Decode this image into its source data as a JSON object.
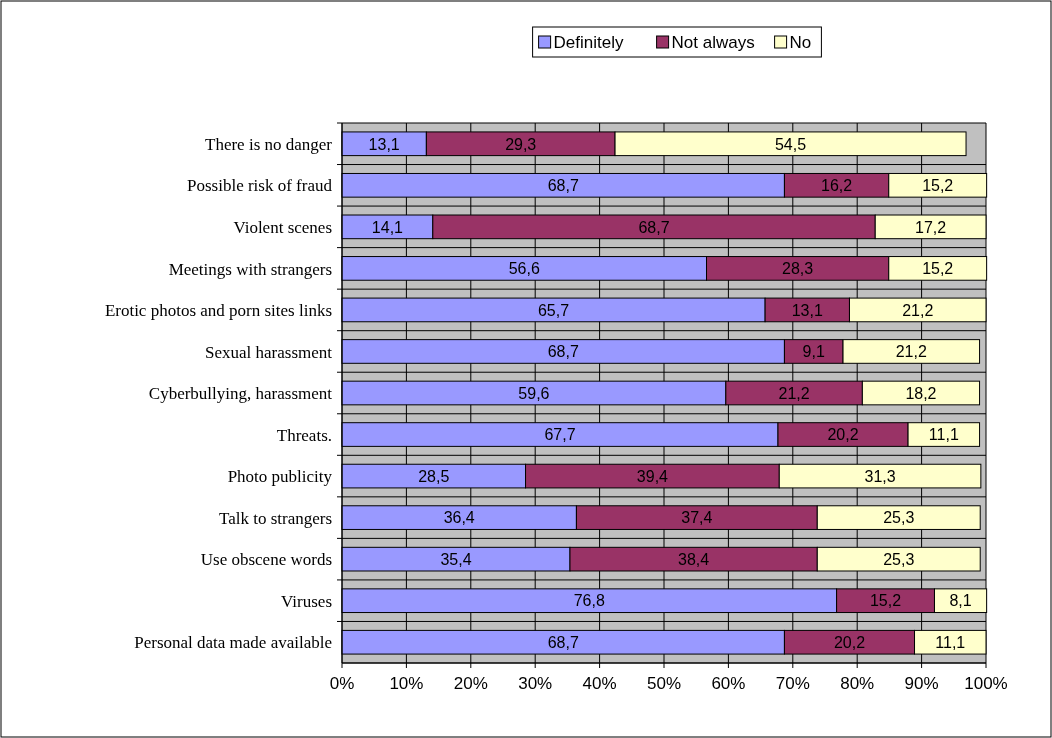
{
  "chart_data": {
    "type": "bar",
    "orientation": "horizontal",
    "stacked": true,
    "grid": true,
    "legend": "top",
    "categories": [
      "There is no danger",
      "Possible risk of fraud",
      "Violent scenes",
      "Meetings with strangers",
      "Erotic photos and porn sites links",
      "Sexual harassment",
      "Cyberbullying, harassment",
      "Threats.",
      "Photo publicity",
      "Talk to strangers",
      "Use obscene words",
      "Viruses",
      "Personal data made available"
    ],
    "xlim": [
      0,
      100
    ],
    "xticks": [
      {
        "value": 0,
        "label": "0%"
      },
      {
        "value": 10,
        "label": "10%"
      },
      {
        "value": 20,
        "label": "20%"
      },
      {
        "value": 30,
        "label": "30%"
      },
      {
        "value": 40,
        "label": "40%"
      },
      {
        "value": 50,
        "label": "50%"
      },
      {
        "value": 60,
        "label": "60%"
      },
      {
        "value": 70,
        "label": "70%"
      },
      {
        "value": 80,
        "label": "80%"
      },
      {
        "value": 90,
        "label": "90%"
      },
      {
        "value": 100,
        "label": "100%"
      }
    ],
    "series": [
      {
        "name": "Definitely",
        "color": "#9999ff",
        "values": [
          13.1,
          68.7,
          14.1,
          56.6,
          65.7,
          68.7,
          59.6,
          67.7,
          28.5,
          36.4,
          35.4,
          76.8,
          68.7
        ],
        "value_labels": [
          "13,1",
          "68,7",
          "14,1",
          "56,6",
          "65,7",
          "68,7",
          "59,6",
          "67,7",
          "28,5",
          "36,4",
          "35,4",
          "76,8",
          "68,7"
        ]
      },
      {
        "name": "Not always",
        "color": "#993366",
        "values": [
          29.3,
          16.2,
          68.7,
          28.3,
          13.1,
          9.1,
          21.2,
          20.2,
          39.4,
          37.4,
          38.4,
          15.2,
          20.2
        ],
        "value_labels": [
          "29,3",
          "16,2",
          "68,7",
          "28,3",
          "13,1",
          "9,1",
          "21,2",
          "20,2",
          "39,4",
          "37,4",
          "38,4",
          "15,2",
          "20,2"
        ]
      },
      {
        "name": "No",
        "color": "#ffffcc",
        "values": [
          54.5,
          15.2,
          17.2,
          15.2,
          21.2,
          21.2,
          18.2,
          11.1,
          31.3,
          25.3,
          25.3,
          8.1,
          11.1
        ],
        "value_labels": [
          "54,5",
          "15,2",
          "17,2",
          "15,2",
          "21,2",
          "21,2",
          "18,2",
          "11,1",
          "31,3",
          "25,3",
          "25,3",
          "8,1",
          "11,1"
        ]
      }
    ]
  }
}
